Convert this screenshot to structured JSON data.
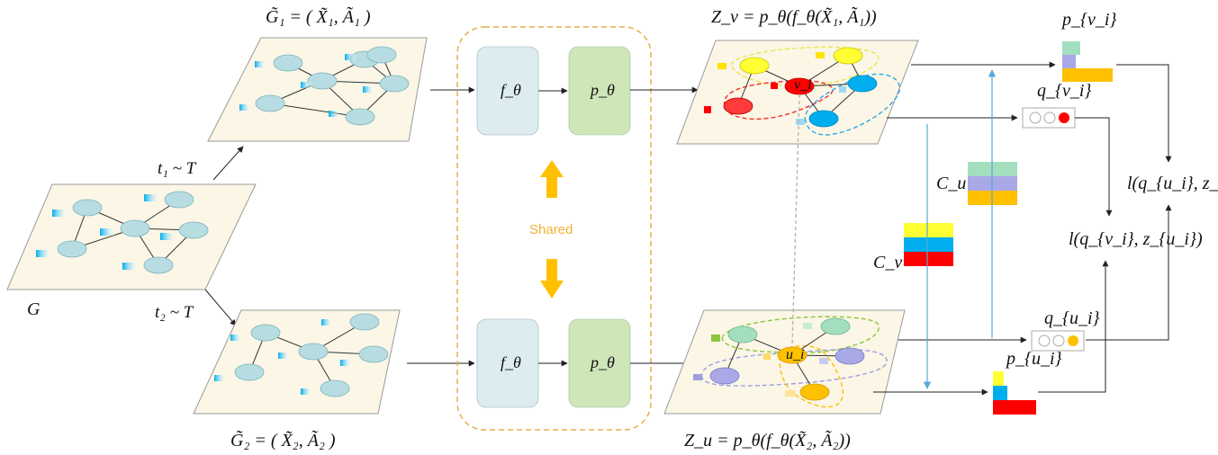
{
  "labels": {
    "g1_title": "G̃₁ = ( X̃₁, Ã₁ )",
    "g2_title": "G̃₂ = ( X̃₂, Ã₂ )",
    "zv_title": "Z_v = p_θ(f_θ(X̃₁, Ã₁))",
    "zu_title": "Z_u = p_θ(f_θ(X̃₂, Ã₂))",
    "g_label": "G",
    "t1": "t₁ ~ T",
    "t2": "t₂ ~ T",
    "f_theta": "f_θ",
    "p_theta": "p_θ",
    "shared": "Shared",
    "v_i": "v_i",
    "u_i": "u_i",
    "p_vi": "p_{v_i}",
    "q_vi": "q_{v_i}",
    "q_ui": "q_{u_i}",
    "p_ui": "p_{u_i}",
    "c_u": "C_u",
    "c_v": "C_v",
    "loss_qu_zv": "l(q_{u_i}, z_{v_i})",
    "loss_qv_zu": "l(q_{v_i}, z_{u_i})"
  },
  "colors": {
    "node": "#b7dde2",
    "panel": "#fbf6e6",
    "encoder_box": "#dcecef",
    "projector_box": "#cfe6b8",
    "shared_border": "#e3b04b",
    "yellow": "#ffff33",
    "blue": "#00aeef",
    "red": "#ff0000",
    "gold": "#ffc000",
    "mint": "#a3dfbe",
    "lavender": "#a9a9e8",
    "purple_node": "#a9a9e8"
  }
}
